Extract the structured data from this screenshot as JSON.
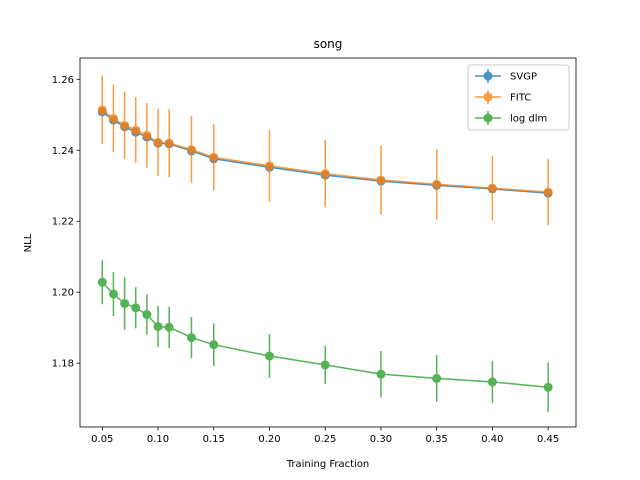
{
  "chart_data": {
    "type": "line",
    "title": "song",
    "xlabel": "Training Fraction",
    "ylabel": "NLL",
    "xlim": [
      0.03,
      0.475
    ],
    "ylim": [
      1.162,
      1.266
    ],
    "xticks": [
      "0.05",
      "0.10",
      "0.15",
      "0.20",
      "0.25",
      "0.30",
      "0.35",
      "0.40",
      "0.45"
    ],
    "yticks": [
      "1.18",
      "1.20",
      "1.22",
      "1.24",
      "1.26"
    ],
    "grid": false,
    "legend_position": "top-right",
    "x": [
      0.05,
      0.06,
      0.07,
      0.08,
      0.09,
      0.1,
      0.11,
      0.13,
      0.15,
      0.2,
      0.25,
      0.3,
      0.35,
      0.4,
      0.45
    ],
    "series": [
      {
        "name": "SVGP",
        "color": "#1f77b4",
        "values": [
          1.2508,
          1.2485,
          1.2466,
          1.2451,
          1.2437,
          1.242,
          1.2418,
          1.2398,
          1.2376,
          1.2352,
          1.233,
          1.2313,
          1.2301,
          1.2291,
          1.2279
        ],
        "errors": [
          0.0,
          0.0,
          0.0,
          0.0,
          0.0,
          0.0,
          0.0,
          0.0,
          0.0,
          0.0,
          0.0,
          0.0,
          0.0,
          0.0,
          0.0
        ]
      },
      {
        "name": "FITC",
        "color": "#ff7f0e",
        "values": [
          1.2514,
          1.249,
          1.247,
          1.2457,
          1.2442,
          1.2422,
          1.242,
          1.2402,
          1.238,
          1.2356,
          1.2334,
          1.2316,
          1.2304,
          1.2293,
          1.2282
        ],
        "errors": [
          0.0096,
          0.0095,
          0.0095,
          0.0093,
          0.0091,
          0.0095,
          0.0096,
          0.0094,
          0.0093,
          0.0101,
          0.0095,
          0.0097,
          0.0099,
          0.0091,
          0.0093
        ]
      },
      {
        "name": "log dlm",
        "color": "#2ca02c",
        "values": [
          1.2028,
          1.1995,
          1.1968,
          1.1956,
          1.1937,
          1.1903,
          1.1901,
          1.1872,
          1.1852,
          1.182,
          1.1795,
          1.1769,
          1.1757,
          1.1747,
          1.1732
        ],
        "errors": [
          0.0062,
          0.0062,
          0.0074,
          0.0058,
          0.0057,
          0.0058,
          0.0058,
          0.0058,
          0.006,
          0.0062,
          0.0054,
          0.0065,
          0.0066,
          0.0059,
          0.007
        ]
      }
    ]
  }
}
